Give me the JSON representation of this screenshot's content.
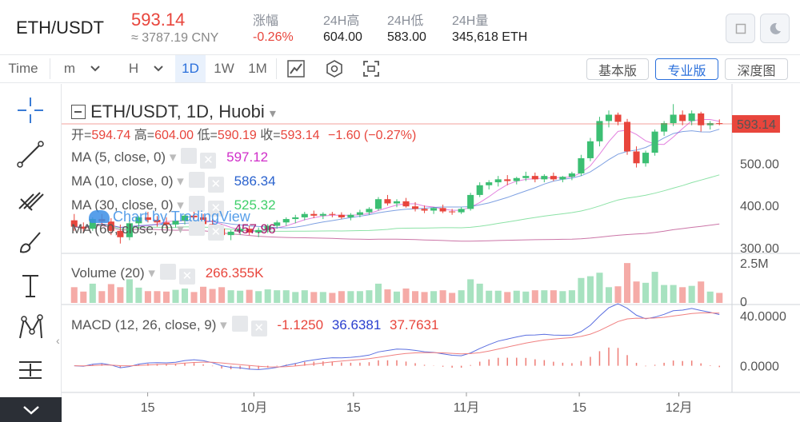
{
  "header": {
    "pair": "ETH/USDT",
    "price": "593.14",
    "cny": "≈ 3787.19 CNY",
    "stats": [
      {
        "label": "涨幅",
        "value": "-0.26%"
      },
      {
        "label": "24H高",
        "value": "604.00"
      },
      {
        "label": "24H低",
        "value": "583.00"
      },
      {
        "label": "24H量",
        "value": "345,618 ETH"
      }
    ]
  },
  "toolbar": {
    "time_label": "Time",
    "intervals": [
      "m",
      "H",
      "1D",
      "1W",
      "1M"
    ],
    "active_interval": "1D",
    "views": [
      "基本版",
      "专业版",
      "深度图"
    ],
    "active_view": "专业版"
  },
  "chart": {
    "symbol_title": "ETH/USDT, 1D, Huobi",
    "ohlc": {
      "open_label": "开=",
      "open": "594.74",
      "high_label": "高=",
      "high": "604.00",
      "low_label": "低=",
      "low": "590.19",
      "close_label": "收=",
      "close": "593.14",
      "change": "−1.60 (−0.27%)"
    },
    "ma": [
      {
        "label": "MA (5, close, 0)",
        "value": "597.12",
        "color": "#d02ec9"
      },
      {
        "label": "MA (10, close, 0)",
        "value": "586.34",
        "color": "#2a62ce"
      },
      {
        "label": "MA (30, close, 0)",
        "value": "525.32",
        "color": "#3fcf6a"
      },
      {
        "label": "MA (60, close, 0)",
        "value": "457.96",
        "color": "#a8196d"
      }
    ],
    "volume": {
      "label": "Volume (20)",
      "value": "266.355K"
    },
    "macd": {
      "label": "MACD (12, 26, close, 9)",
      "v1": "-1.1250",
      "v2": "36.6381",
      "v3": "37.7631"
    },
    "watermark": "Chart by TradingView",
    "price_ticks": [
      "500.00",
      "400.00",
      "300.00"
    ],
    "current_price_tag": "593.14",
    "volume_ticks": [
      "2.5M",
      "0"
    ],
    "macd_ticks": [
      "40.0000",
      "0.0000"
    ],
    "time_ticks": [
      "15",
      "10月",
      "15",
      "11月",
      "15",
      "12月"
    ],
    "colors": {
      "up": "#3cbf73",
      "down": "#e8453c"
    }
  },
  "chart_data": {
    "type": "candlestick",
    "title": "ETH/USDT, 1D, Huobi",
    "y_range": [
      300,
      650
    ],
    "candles": [
      [
        365,
        380,
        340,
        350
      ],
      [
        350,
        360,
        335,
        345
      ],
      [
        345,
        372,
        340,
        368
      ],
      [
        368,
        380,
        355,
        362
      ],
      [
        362,
        370,
        330,
        340
      ],
      [
        340,
        355,
        310,
        325
      ],
      [
        325,
        365,
        318,
        358
      ],
      [
        358,
        375,
        345,
        372
      ],
      [
        372,
        385,
        360,
        366
      ],
      [
        366,
        375,
        350,
        360
      ],
      [
        360,
        372,
        345,
        355
      ],
      [
        355,
        368,
        348,
        364
      ],
      [
        364,
        380,
        355,
        376
      ],
      [
        376,
        388,
        368,
        372
      ],
      [
        372,
        380,
        350,
        356
      ],
      [
        356,
        368,
        340,
        345
      ],
      [
        345,
        356,
        320,
        330
      ],
      [
        330,
        342,
        318,
        338
      ],
      [
        338,
        350,
        330,
        345
      ],
      [
        345,
        352,
        330,
        336
      ],
      [
        336,
        348,
        325,
        342
      ],
      [
        342,
        356,
        335,
        352
      ],
      [
        352,
        365,
        345,
        360
      ],
      [
        360,
        372,
        352,
        368
      ],
      [
        368,
        378,
        358,
        372
      ],
      [
        372,
        385,
        365,
        380
      ],
      [
        380,
        388,
        370,
        376
      ],
      [
        376,
        384,
        368,
        380
      ],
      [
        380,
        385,
        372,
        378
      ],
      [
        378,
        384,
        368,
        372
      ],
      [
        372,
        382,
        365,
        378
      ],
      [
        378,
        390,
        372,
        384
      ],
      [
        384,
        396,
        378,
        392
      ],
      [
        392,
        420,
        388,
        415
      ],
      [
        415,
        425,
        400,
        405
      ],
      [
        405,
        415,
        396,
        410
      ],
      [
        410,
        418,
        395,
        398
      ],
      [
        398,
        408,
        386,
        392
      ],
      [
        392,
        400,
        382,
        388
      ],
      [
        388,
        396,
        380,
        394
      ],
      [
        394,
        402,
        382,
        386
      ],
      [
        386,
        392,
        378,
        384
      ],
      [
        384,
        396,
        380,
        392
      ],
      [
        392,
        430,
        388,
        425
      ],
      [
        425,
        455,
        420,
        448
      ],
      [
        448,
        460,
        438,
        455
      ],
      [
        455,
        470,
        445,
        462
      ],
      [
        462,
        472,
        448,
        458
      ],
      [
        458,
        468,
        450,
        465
      ],
      [
        465,
        480,
        458,
        470
      ],
      [
        470,
        478,
        455,
        462
      ],
      [
        462,
        474,
        455,
        470
      ],
      [
        470,
        478,
        458,
        462
      ],
      [
        462,
        470,
        455,
        468
      ],
      [
        468,
        480,
        460,
        476
      ],
      [
        476,
        520,
        470,
        512
      ],
      [
        512,
        560,
        505,
        552
      ],
      [
        552,
        610,
        540,
        600
      ],
      [
        600,
        625,
        585,
        615
      ],
      [
        615,
        620,
        590,
        598
      ],
      [
        598,
        605,
        520,
        528
      ],
      [
        528,
        540,
        490,
        500
      ],
      [
        500,
        530,
        492,
        525
      ],
      [
        525,
        580,
        518,
        575
      ],
      [
        575,
        600,
        565,
        595
      ],
      [
        595,
        640,
        588,
        615
      ],
      [
        615,
        625,
        590,
        600
      ],
      [
        600,
        625,
        590,
        618
      ],
      [
        618,
        622,
        575,
        590
      ],
      [
        590,
        600,
        580,
        595
      ],
      [
        595,
        604,
        590,
        593
      ]
    ],
    "ma_series": [
      "MA (5, close, 0)",
      "MA (10, close, 0)",
      "MA (30, close, 0)",
      "MA (60, close, 0)"
    ],
    "volume_range": [
      0,
      2500000
    ],
    "macd_range": [
      -20,
      45
    ]
  }
}
